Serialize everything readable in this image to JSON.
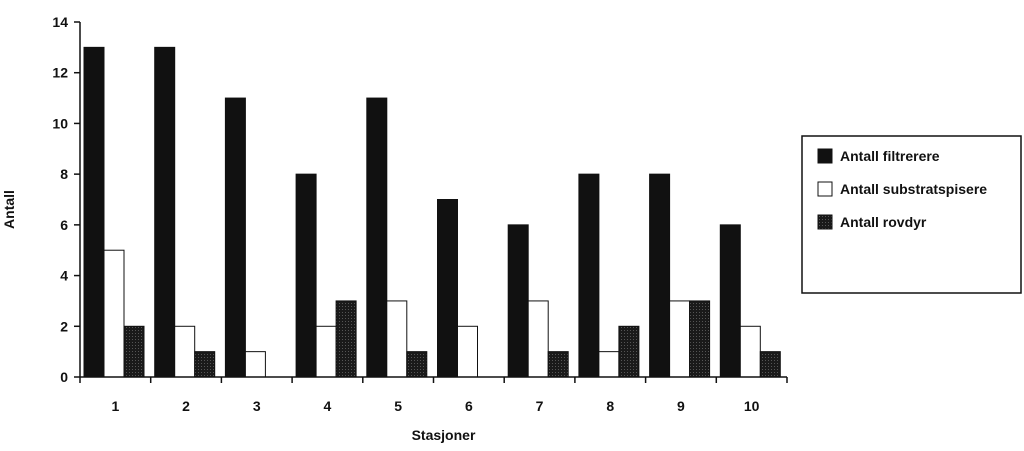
{
  "chart_data": {
    "type": "bar",
    "title": "",
    "xlabel": "Stasjoner",
    "ylabel": "Antall",
    "ylim": [
      0,
      14
    ],
    "yticks": [
      0,
      2,
      4,
      6,
      8,
      10,
      12,
      14
    ],
    "categories": [
      "1",
      "2",
      "3",
      "4",
      "5",
      "6",
      "7",
      "8",
      "9",
      "10"
    ],
    "grid": false,
    "legend_position": "right",
    "series": [
      {
        "name": "Antall filtrerere",
        "color": "#111111",
        "values": [
          13,
          13,
          11,
          8,
          11,
          7,
          6,
          8,
          8,
          6
        ]
      },
      {
        "name": "Antall substratspisere",
        "color": "#ffffff",
        "values": [
          5,
          2,
          1,
          2,
          3,
          2,
          3,
          1,
          3,
          2
        ]
      },
      {
        "name": "Antall rovdyr",
        "color": "#2b2b2b",
        "values": [
          2,
          1,
          0,
          3,
          1,
          0,
          1,
          2,
          3,
          1
        ]
      }
    ]
  }
}
